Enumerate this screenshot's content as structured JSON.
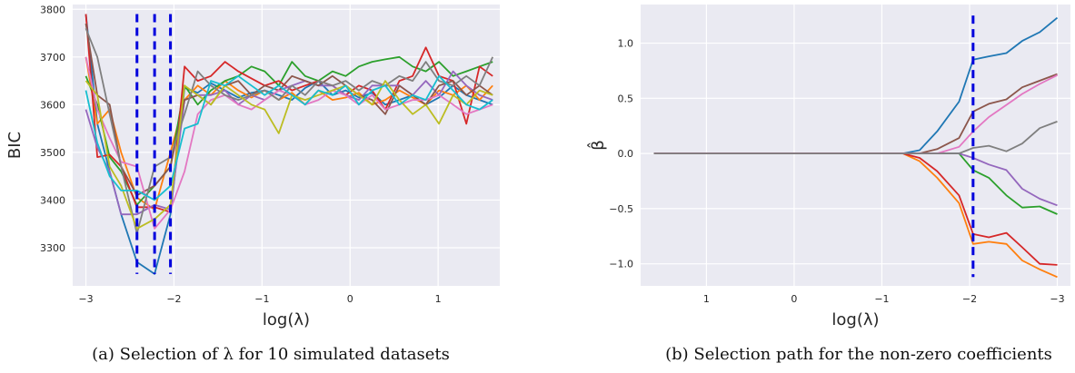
{
  "chart_data": [
    {
      "type": "line",
      "caption": "(a) Selection of λ for 10 simulated datasets",
      "xlabel": "log(λ)",
      "ylabel": "BIC",
      "xlim": [
        -3.15,
        1.7
      ],
      "ylim": [
        3220,
        3810
      ],
      "xticks": [
        -3,
        -2,
        -1,
        0,
        1
      ],
      "yticks": [
        3300,
        3400,
        3500,
        3600,
        3700,
        3800
      ],
      "grid": true,
      "background": "#eaeaf2",
      "vlines": {
        "x": [
          -2.42,
          -2.22,
          -2.04
        ],
        "ymin": 3245,
        "ymax": 3790,
        "color": "#0000dd"
      },
      "x": [
        -3.0,
        -2.87,
        -2.73,
        -2.6,
        -2.42,
        -2.22,
        -2.04,
        -1.88,
        -1.73,
        -1.58,
        -1.42,
        -1.27,
        -1.12,
        -0.97,
        -0.81,
        -0.66,
        -0.51,
        -0.36,
        -0.2,
        -0.05,
        0.1,
        0.25,
        0.4,
        0.56,
        0.71,
        0.86,
        1.01,
        1.17,
        1.32,
        1.47,
        1.62
      ],
      "series": [
        {
          "color": "#1f77b4",
          "values": [
            3790,
            3560,
            3460,
            3370,
            3270,
            3245,
            3370,
            3635,
            3625,
            3645,
            3630,
            3615,
            3625,
            3630,
            3620,
            3610,
            3635,
            3650,
            3620,
            3630,
            3615,
            3625,
            3600,
            3610,
            3620,
            3600,
            3615,
            3640,
            3620,
            3610,
            3600
          ]
        },
        {
          "color": "#ff7f0e",
          "values": [
            3700,
            3560,
            3590,
            3500,
            3405,
            3380,
            3500,
            3610,
            3640,
            3620,
            3650,
            3630,
            3615,
            3630,
            3610,
            3625,
            3600,
            3630,
            3610,
            3615,
            3625,
            3600,
            3610,
            3630,
            3615,
            3600,
            3630,
            3620,
            3640,
            3610,
            3640
          ]
        },
        {
          "color": "#2ca02c",
          "values": [
            3660,
            3600,
            3490,
            3460,
            3390,
            3430,
            3470,
            3640,
            3600,
            3630,
            3650,
            3660,
            3680,
            3670,
            3640,
            3690,
            3660,
            3650,
            3670,
            3660,
            3680,
            3690,
            3695,
            3700,
            3680,
            3670,
            3690,
            3660,
            3670,
            3680,
            3690
          ]
        },
        {
          "color": "#d62728",
          "values": [
            3790,
            3490,
            3495,
            3470,
            3385,
            3385,
            3375,
            3680,
            3650,
            3660,
            3690,
            3670,
            3655,
            3640,
            3650,
            3630,
            3640,
            3650,
            3640,
            3620,
            3640,
            3630,
            3590,
            3650,
            3660,
            3720,
            3660,
            3650,
            3560,
            3680,
            3660
          ]
        },
        {
          "color": "#9467bd",
          "values": [
            3590,
            3510,
            3460,
            3370,
            3370,
            3390,
            3380,
            3610,
            3620,
            3620,
            3630,
            3600,
            3620,
            3610,
            3630,
            3640,
            3650,
            3640,
            3640,
            3620,
            3610,
            3640,
            3640,
            3640,
            3620,
            3650,
            3620,
            3670,
            3640,
            3620,
            3610
          ]
        },
        {
          "color": "#8c564b",
          "values": [
            3770,
            3620,
            3600,
            3470,
            3410,
            3430,
            3470,
            3610,
            3620,
            3600,
            3640,
            3650,
            3620,
            3640,
            3630,
            3660,
            3650,
            3640,
            3660,
            3640,
            3620,
            3610,
            3580,
            3640,
            3620,
            3600,
            3640,
            3650,
            3620,
            3640,
            3620
          ]
        },
        {
          "color": "#e377c2",
          "values": [
            3700,
            3590,
            3530,
            3480,
            3470,
            3340,
            3380,
            3460,
            3580,
            3610,
            3620,
            3600,
            3590,
            3610,
            3630,
            3620,
            3600,
            3610,
            3630,
            3620,
            3600,
            3620,
            3590,
            3600,
            3610,
            3610,
            3620,
            3600,
            3580,
            3590,
            3600
          ]
        },
        {
          "color": "#7f7f7f",
          "values": [
            3760,
            3700,
            3580,
            3470,
            3330,
            3470,
            3490,
            3580,
            3670,
            3640,
            3620,
            3610,
            3620,
            3630,
            3610,
            3640,
            3620,
            3650,
            3640,
            3650,
            3630,
            3650,
            3640,
            3660,
            3650,
            3690,
            3650,
            3640,
            3660,
            3640,
            3700
          ]
        },
        {
          "color": "#bcbd22",
          "values": [
            3650,
            3620,
            3470,
            3430,
            3340,
            3360,
            3390,
            3640,
            3620,
            3600,
            3640,
            3620,
            3600,
            3590,
            3540,
            3620,
            3610,
            3620,
            3630,
            3640,
            3620,
            3600,
            3650,
            3610,
            3580,
            3600,
            3560,
            3620,
            3600,
            3630,
            3620
          ]
        },
        {
          "color": "#17becf",
          "values": [
            3630,
            3520,
            3450,
            3420,
            3420,
            3400,
            3430,
            3550,
            3560,
            3650,
            3640,
            3660,
            3640,
            3620,
            3640,
            3620,
            3600,
            3630,
            3620,
            3640,
            3600,
            3630,
            3640,
            3600,
            3620,
            3610,
            3660,
            3630,
            3600,
            3590,
            3610
          ]
        }
      ]
    },
    {
      "type": "line",
      "caption": "(b) Selection path for the non-zero coefficients",
      "xlabel": "log(λ)",
      "ylabel": "β̂",
      "xlim": [
        1.75,
        -3.15
      ],
      "ylim": [
        -1.2,
        1.35
      ],
      "xticks": [
        1,
        0,
        -1,
        -2,
        -3
      ],
      "yticks": [
        1.0,
        0.5,
        0.0,
        -0.5,
        -1.0
      ],
      "ytick_labels": [
        "1.0",
        "0.5",
        "0.0",
        "−0.5",
        "−1.0"
      ],
      "xtick_labels": [
        "1",
        "0",
        "−1",
        "−2",
        "−3"
      ],
      "grid": true,
      "background": "#eaeaf2",
      "vlines": {
        "x": [
          -2.04
        ],
        "ymin": -1.12,
        "ymax": 1.25,
        "color": "#0000dd"
      },
      "x": [
        1.6,
        1.0,
        0.5,
        0.0,
        -0.5,
        -1.0,
        -1.24,
        -1.43,
        -1.63,
        -1.88,
        -2.04,
        -2.22,
        -2.42,
        -2.6,
        -2.8,
        -3.0
      ],
      "series": [
        {
          "color": "#1f77b4",
          "values": [
            0,
            0,
            0,
            0,
            0,
            0,
            0,
            0.03,
            0.2,
            0.47,
            0.85,
            0.88,
            0.91,
            1.02,
            1.1,
            1.23
          ]
        },
        {
          "color": "#ff7f0e",
          "values": [
            0,
            0,
            0,
            0,
            0,
            0,
            0,
            -0.07,
            -0.22,
            -0.45,
            -0.82,
            -0.8,
            -0.82,
            -0.97,
            -1.05,
            -1.12
          ]
        },
        {
          "color": "#2ca02c",
          "values": [
            0,
            0,
            0,
            0,
            0,
            0,
            0,
            0,
            0,
            0,
            -0.15,
            -0.22,
            -0.38,
            -0.49,
            -0.48,
            -0.55
          ]
        },
        {
          "color": "#d62728",
          "values": [
            0,
            0,
            0,
            0,
            0,
            0,
            0,
            -0.04,
            -0.16,
            -0.38,
            -0.73,
            -0.76,
            -0.72,
            -0.85,
            -1.0,
            -1.01
          ]
        },
        {
          "color": "#9467bd",
          "values": [
            0,
            0,
            0,
            0,
            0,
            0,
            0,
            0,
            0,
            0,
            -0.04,
            -0.1,
            -0.15,
            -0.32,
            -0.41,
            -0.47
          ]
        },
        {
          "color": "#8c564b",
          "values": [
            0,
            0,
            0,
            0,
            0,
            0,
            0,
            0,
            0.04,
            0.14,
            0.38,
            0.45,
            0.49,
            0.6,
            0.66,
            0.72
          ]
        },
        {
          "color": "#e377c2",
          "values": [
            0,
            0,
            0,
            0,
            0,
            0,
            0,
            0,
            0,
            0.06,
            0.2,
            0.33,
            0.44,
            0.54,
            0.63,
            0.71
          ]
        },
        {
          "color": "#7f7f7f",
          "values": [
            0,
            0,
            0,
            0,
            0,
            0,
            0,
            0,
            0,
            0,
            0.05,
            0.07,
            0.02,
            0.09,
            0.23,
            0.29
          ]
        }
      ]
    }
  ]
}
